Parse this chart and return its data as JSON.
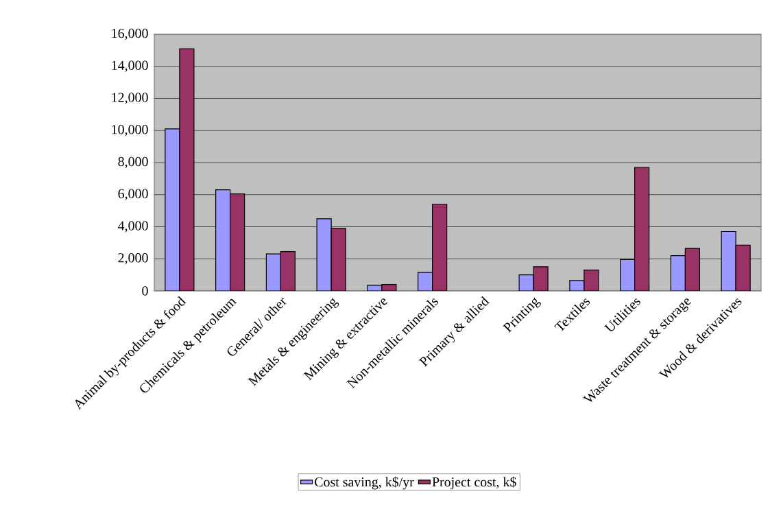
{
  "chart_data": {
    "type": "bar",
    "categories": [
      "Animal by-products & food",
      "Chemicals & petroleum",
      "General/ other",
      "Metals & engineering",
      "Mining & extractive",
      "Non-metallic minerals",
      "Primary & allied",
      "Printing",
      "Textiles",
      "Utilities",
      "Waste treatment & storage",
      "Wood & derivatives"
    ],
    "series": [
      {
        "name": "Cost saving, k$/yr",
        "color": "#9999ff",
        "values": [
          10100,
          6300,
          2300,
          4500,
          350,
          1150,
          null,
          1000,
          650,
          1950,
          2200,
          3700
        ]
      },
      {
        "name": "Project cost, k$",
        "color": "#993366",
        "values": [
          15100,
          6050,
          2450,
          3900,
          400,
          5400,
          null,
          1500,
          1300,
          7700,
          2650,
          2850
        ]
      }
    ],
    "ylim": [
      0,
      16000
    ],
    "yticks": [
      0,
      {
        "value": 2000,
        "label": "2,000"
      },
      {
        "value": 4000,
        "label": "4,000"
      },
      {
        "value": 6000,
        "label": "6,000"
      },
      {
        "value": 8000,
        "label": "8,000"
      },
      {
        "value": 10000,
        "label": "10,000"
      },
      {
        "value": 12000,
        "label": "12,000"
      },
      {
        "value": 14000,
        "label": "14,000"
      },
      {
        "value": 16000,
        "label": "16,000"
      }
    ],
    "grid": "y",
    "legend": "bottom"
  }
}
